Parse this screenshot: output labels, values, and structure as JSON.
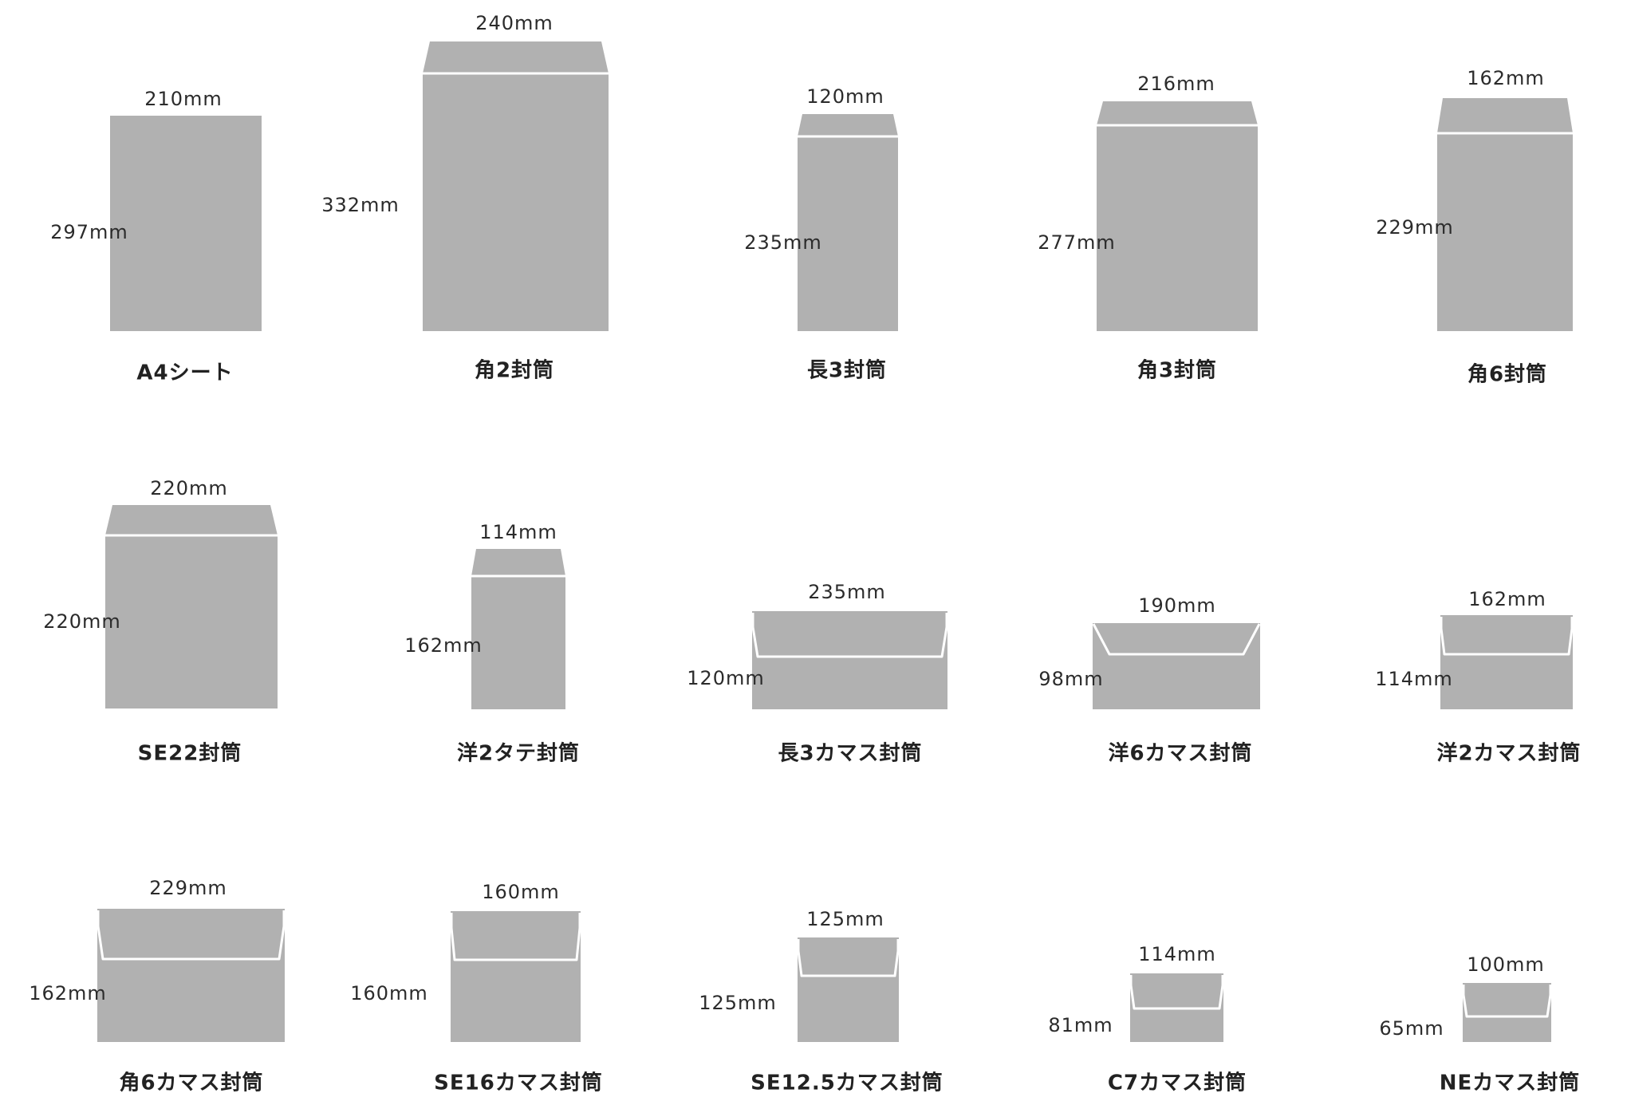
{
  "colors": {
    "envelope_fill": "#b1b1b1",
    "flap_line": "#ffffff",
    "text": "#222222",
    "background": "#ffffff"
  },
  "items": [
    {
      "name": "A4シート",
      "width_label": "210mm",
      "height_label": "297mm",
      "kind": "sheet"
    },
    {
      "name": "角2封筒",
      "width_label": "240mm",
      "height_label": "332mm",
      "kind": "top-flap"
    },
    {
      "name": "長3封筒",
      "width_label": "120mm",
      "height_label": "235mm",
      "kind": "top-flap"
    },
    {
      "name": "角3封筒",
      "width_label": "216mm",
      "height_label": "277mm",
      "kind": "top-flap"
    },
    {
      "name": "角6封筒",
      "width_label": "162mm",
      "height_label": "229mm",
      "kind": "top-flap"
    },
    {
      "name": "SE22封筒",
      "width_label": "220mm",
      "height_label": "220mm",
      "kind": "top-flap"
    },
    {
      "name": "洋2タテ封筒",
      "width_label": "114mm",
      "height_label": "162mm",
      "kind": "top-flap"
    },
    {
      "name": "長3カマス封筒",
      "width_label": "235mm",
      "height_label": "120mm",
      "kind": "kamasu"
    },
    {
      "name": "洋6カマス封筒",
      "width_label": "190mm",
      "height_label": "98mm",
      "kind": "yo-flap"
    },
    {
      "name": "洋2カマス封筒",
      "width_label": "162mm",
      "height_label": "114mm",
      "kind": "kamasu"
    },
    {
      "name": "角6カマス封筒",
      "width_label": "229mm",
      "height_label": "162mm",
      "kind": "kamasu"
    },
    {
      "name": "SE16カマス封筒",
      "width_label": "160mm",
      "height_label": "160mm",
      "kind": "kamasu"
    },
    {
      "name": "SE12.5カマス封筒",
      "width_label": "125mm",
      "height_label": "125mm",
      "kind": "kamasu"
    },
    {
      "name": "C7カマス封筒",
      "width_label": "114mm",
      "height_label": "81mm",
      "kind": "kamasu"
    },
    {
      "name": "NEカマス封筒",
      "width_label": "100mm",
      "height_label": "65mm",
      "kind": "kamasu"
    }
  ]
}
